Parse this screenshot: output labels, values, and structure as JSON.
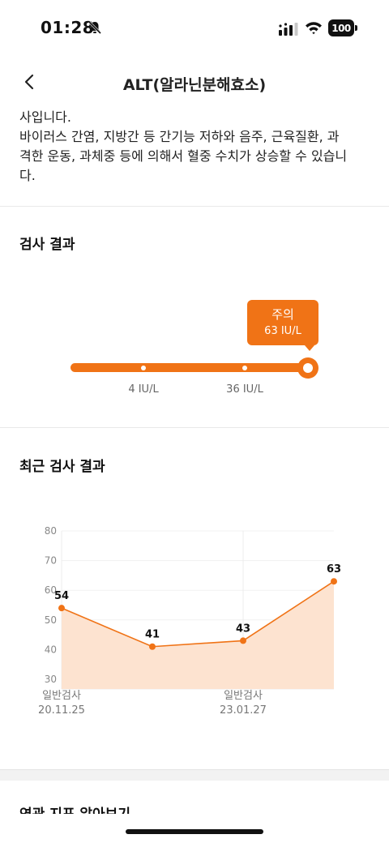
{
  "status_bar": {
    "time": "01:28",
    "battery": "100"
  },
  "nav": {
    "title": "ALT(알라닌분해효소)"
  },
  "description": {
    "lines": [
      "사입니다.",
      "바이러스 간염, 지방간 등 간기능 저하와 음주, 근육질환, 과",
      "격한 운동, 과체중 등에 의해서 혈중 수치가 상승할 수 있습니",
      "다."
    ]
  },
  "result": {
    "title": "검사 결과",
    "status_label": "주의",
    "value": 63,
    "value_label": "63 IU/L",
    "range_low_label": "4 IU/L",
    "range_high_label": "36 IU/L",
    "accent_color": "#f07316"
  },
  "recent": {
    "title": "최근 검사 결과"
  },
  "chart_data": {
    "type": "area",
    "x": [
      "20.11.25",
      "",
      "23.01.27",
      ""
    ],
    "x_tick_labels": [
      {
        "type": "일반검사",
        "date": "20.11.25"
      },
      {
        "type": "일반검사",
        "date": "23.01.27"
      }
    ],
    "values": [
      54,
      41,
      43,
      63
    ],
    "data_labels": [
      "54",
      "41",
      "43",
      "63"
    ],
    "ylim": [
      30,
      80
    ],
    "yticks": [
      30,
      40,
      50,
      60,
      70,
      80
    ],
    "grid": true,
    "line_color": "#f07316",
    "fill_color": "#fde3d0"
  },
  "next_section": {
    "title": "연관 지표 알아보기"
  }
}
